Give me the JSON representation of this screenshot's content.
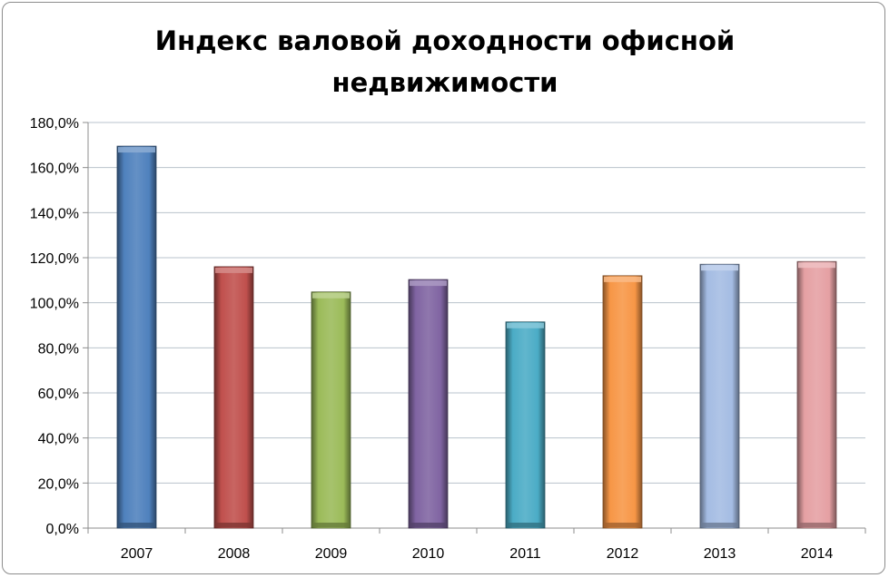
{
  "chart_data": {
    "type": "bar",
    "title": "Индекс валовой доходности офисной недвижимости",
    "xlabel": "",
    "ylabel": "",
    "categories": [
      "2007",
      "2008",
      "2009",
      "2010",
      "2011",
      "2012",
      "2013",
      "2014"
    ],
    "values": [
      169.5,
      116.0,
      104.8,
      110.3,
      91.5,
      112.0,
      117.1,
      118.3
    ],
    "colors": [
      "#4f81bd",
      "#c0504d",
      "#9bbb59",
      "#8064a2",
      "#4bacc6",
      "#f79646",
      "#a4bce3",
      "#e5a0a3"
    ],
    "ylim": [
      0,
      180
    ],
    "yticks": [
      0,
      20,
      40,
      60,
      80,
      100,
      120,
      140,
      160,
      180
    ],
    "ytick_labels": [
      "0,0%",
      "20,0%",
      "40,0%",
      "60,0%",
      "80,0%",
      "100,0%",
      "120,0%",
      "140,0%",
      "160,0%",
      "180,0%"
    ],
    "grid": true,
    "legend": false
  }
}
